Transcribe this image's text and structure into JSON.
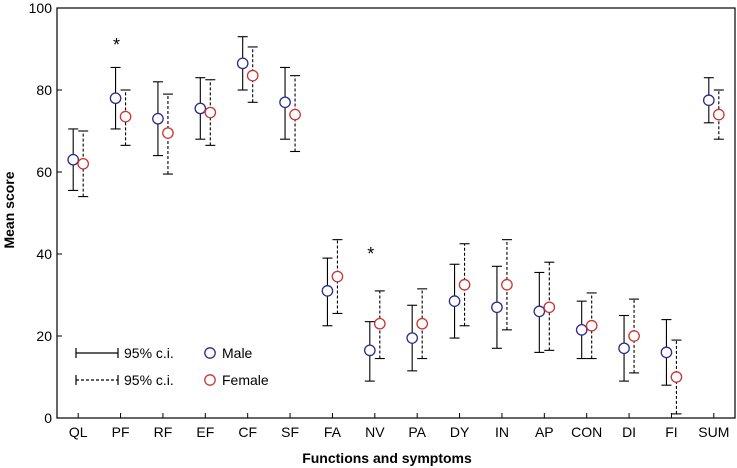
{
  "chart_data": {
    "type": "scatter",
    "title": "",
    "xlabel": "Functions and symptoms",
    "ylabel": "Mean score",
    "ylim": [
      0,
      100
    ],
    "yticks": [
      0,
      20,
      40,
      60,
      80,
      100
    ],
    "categories": [
      "QL",
      "PF",
      "RF",
      "EF",
      "CF",
      "SF",
      "FA",
      "NV",
      "PA",
      "DY",
      "IN",
      "AP",
      "CON",
      "DI",
      "FI",
      "SUM"
    ],
    "series": [
      {
        "name": "Male",
        "color": "#2b2b8f",
        "ci_line": "solid",
        "values": [
          63,
          78,
          73,
          75.5,
          86.5,
          77,
          31,
          16.5,
          19.5,
          28.5,
          27,
          26,
          21.5,
          17,
          16,
          77.5
        ],
        "ci_low": [
          55.5,
          70.5,
          64,
          68,
          80,
          68,
          22.5,
          9,
          11.5,
          19.5,
          17,
          16,
          14.5,
          9,
          8,
          72
        ],
        "ci_high": [
          70.5,
          85.5,
          82,
          83,
          93,
          85.5,
          39,
          23.5,
          27.5,
          37.5,
          37,
          35.5,
          28.5,
          25,
          24,
          83
        ]
      },
      {
        "name": "Female",
        "color": "#cc3333",
        "ci_line": "dashed",
        "values": [
          62,
          73.5,
          69.5,
          74.5,
          83.5,
          74,
          34.5,
          23,
          23,
          32.5,
          32.5,
          27,
          22.5,
          20,
          10,
          74
        ],
        "ci_low": [
          54,
          66.5,
          59.5,
          66.5,
          77,
          65,
          25.5,
          14.5,
          14.5,
          22.5,
          21.5,
          16.5,
          14.5,
          11,
          1,
          68
        ],
        "ci_high": [
          70,
          80,
          79,
          82.5,
          90.5,
          83.5,
          43.5,
          31,
          31.5,
          42.5,
          43.5,
          38,
          30.5,
          29,
          19,
          80
        ]
      }
    ],
    "annotations": [
      {
        "category": "PF",
        "text": "*",
        "y": 92
      },
      {
        "category": "NV",
        "text": "*",
        "y": 41
      }
    ],
    "legend": {
      "position": "bottom-left",
      "ci_solid_label": "95% c.i.",
      "ci_dashed_label": "95% c.i.",
      "male_label": "Male",
      "female_label": "Female"
    }
  }
}
